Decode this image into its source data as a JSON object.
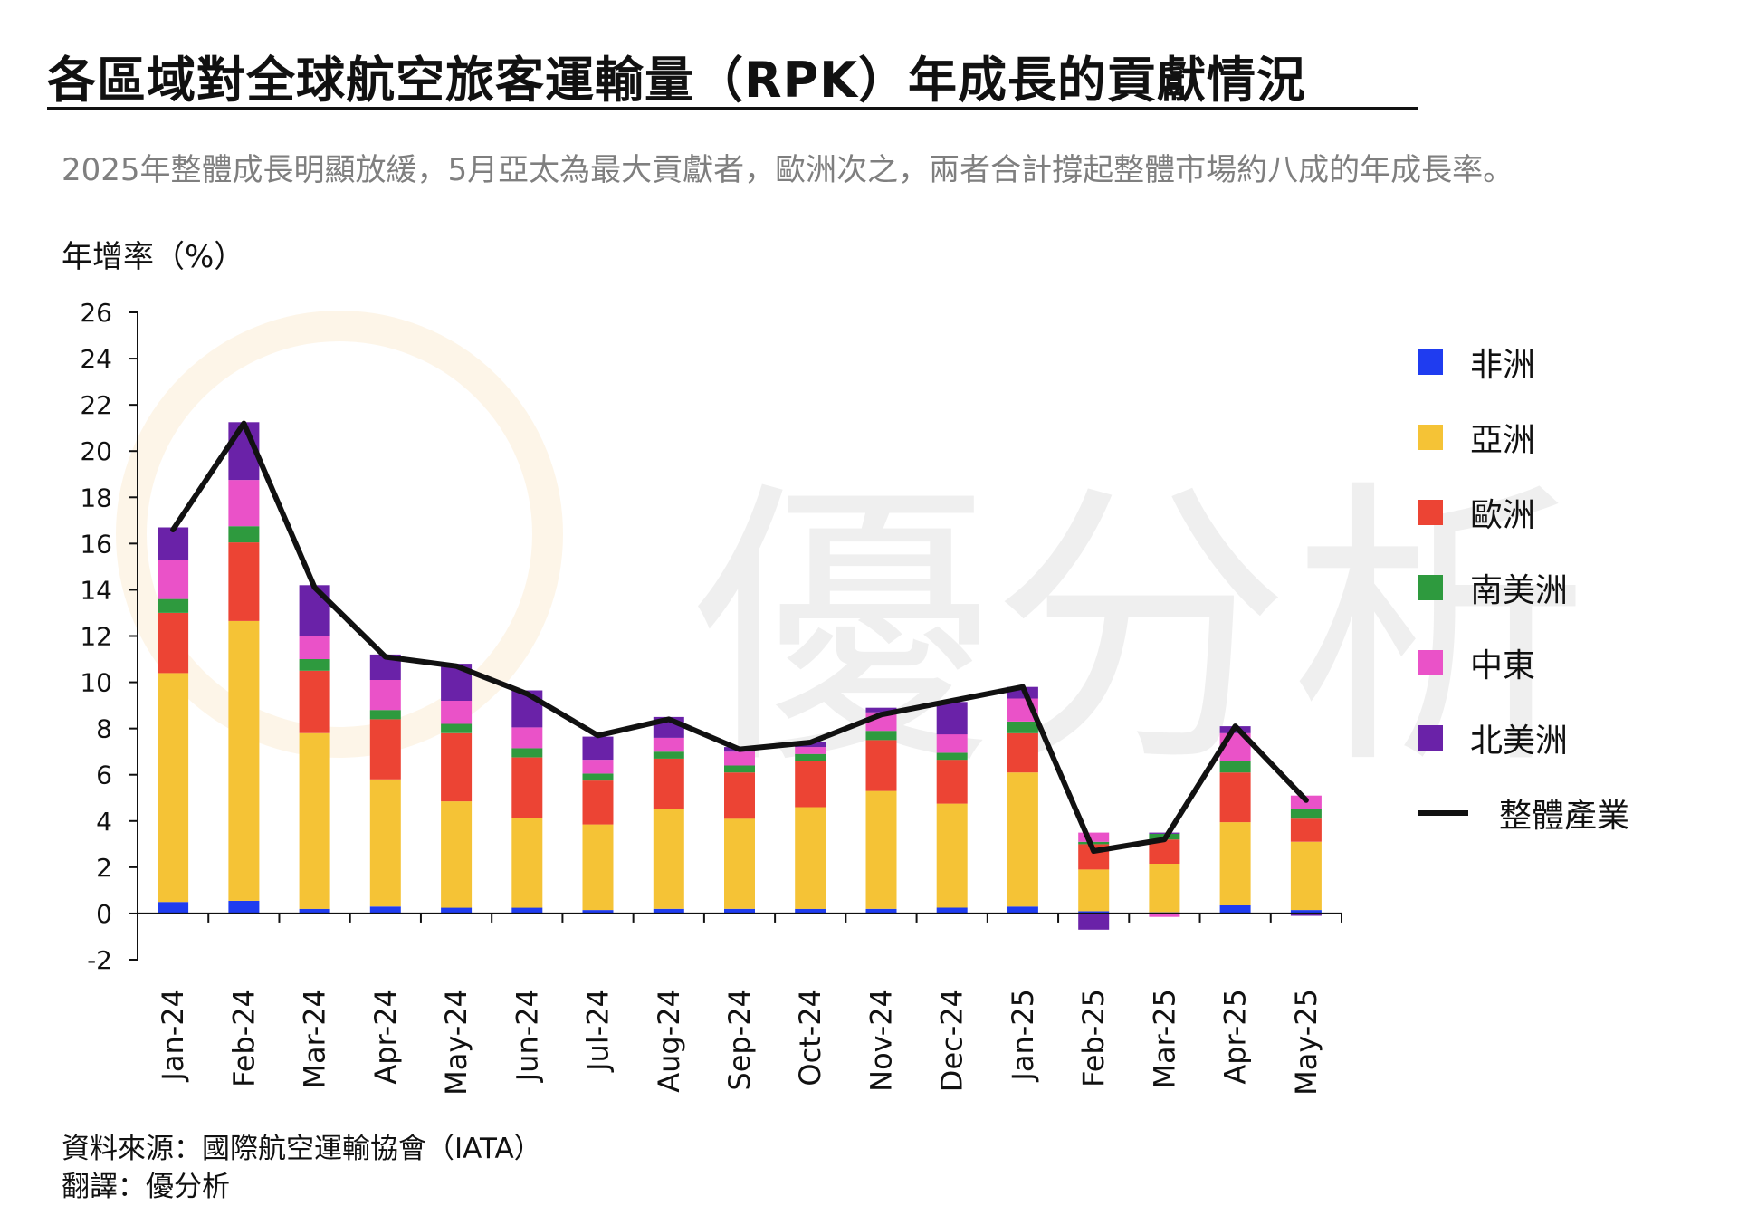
{
  "header": {
    "title": "各區域對全球航空旅客運輸量（RPK）年成長的貢獻情況",
    "subtitle": "2025年整體成長明顯放緩，5月亞太為最大貢獻者，歐洲次之，兩者合計撐起整體市場約八成的年成長率。"
  },
  "footer": {
    "source": "資料來源：國際航空運輸協會（IATA）",
    "translator": "翻譯：優分析"
  },
  "watermark": {
    "text": "優分析"
  },
  "colors": {
    "africa": "#1f3cf0",
    "asia": "#f5c336",
    "europe": "#ec4434",
    "south_america": "#2e9a3e",
    "middle_east": "#ea52c8",
    "north_america": "#6a22a8",
    "industry": "#111111"
  },
  "chart_data": {
    "type": "bar",
    "stacked": true,
    "ylabel": "年增率（%）",
    "ylim": [
      -2,
      26
    ],
    "yticks": [
      -2,
      0,
      2,
      4,
      6,
      8,
      10,
      12,
      14,
      16,
      18,
      20,
      22,
      24,
      26
    ],
    "categories": [
      "Jan-24",
      "Feb-24",
      "Mar-24",
      "Apr-24",
      "May-24",
      "Jun-24",
      "Jul-24",
      "Aug-24",
      "Sep-24",
      "Oct-24",
      "Nov-24",
      "Dec-24",
      "Jan-25",
      "Feb-25",
      "Mar-25",
      "Apr-25",
      "May-25"
    ],
    "series": [
      {
        "name": "非洲",
        "key": "africa",
        "values": [
          0.5,
          0.55,
          0.2,
          0.3,
          0.25,
          0.25,
          0.15,
          0.2,
          0.2,
          0.2,
          0.2,
          0.25,
          0.3,
          0.1,
          0.05,
          0.35,
          0.15
        ]
      },
      {
        "name": "亞洲",
        "key": "asia",
        "values": [
          9.9,
          12.1,
          7.6,
          5.5,
          4.6,
          3.9,
          3.7,
          4.3,
          3.9,
          4.4,
          5.1,
          4.5,
          5.8,
          1.8,
          2.1,
          3.6,
          2.95
        ]
      },
      {
        "name": "歐洲",
        "key": "europe",
        "values": [
          2.6,
          3.4,
          2.7,
          2.6,
          2.95,
          2.6,
          1.9,
          2.2,
          2.0,
          2.0,
          2.2,
          1.9,
          1.7,
          1.1,
          1.05,
          2.15,
          1.0
        ]
      },
      {
        "name": "南美洲",
        "key": "south_america",
        "values": [
          0.6,
          0.7,
          0.5,
          0.4,
          0.4,
          0.4,
          0.3,
          0.3,
          0.3,
          0.3,
          0.4,
          0.3,
          0.5,
          0.1,
          0.25,
          0.5,
          0.4
        ]
      },
      {
        "name": "中東",
        "key": "middle_east",
        "values": [
          1.7,
          2.0,
          1.0,
          1.3,
          1.0,
          0.9,
          0.6,
          0.6,
          0.6,
          0.3,
          0.8,
          0.8,
          1.0,
          0.4,
          -0.15,
          1.2,
          0.6
        ]
      },
      {
        "name": "北美洲",
        "key": "north_america",
        "values": [
          1.4,
          2.5,
          2.2,
          1.1,
          1.6,
          1.6,
          1.0,
          0.9,
          0.2,
          0.2,
          0.2,
          1.4,
          0.5,
          -0.7,
          0.05,
          0.3,
          -0.1
        ]
      }
    ],
    "line": {
      "name": "整體產業",
      "values": [
        16.6,
        21.2,
        14.1,
        11.1,
        10.7,
        9.5,
        7.7,
        8.4,
        7.1,
        7.4,
        8.6,
        9.2,
        9.8,
        2.7,
        3.2,
        8.1,
        4.9
      ]
    },
    "legend_position": "right",
    "grid": false
  }
}
